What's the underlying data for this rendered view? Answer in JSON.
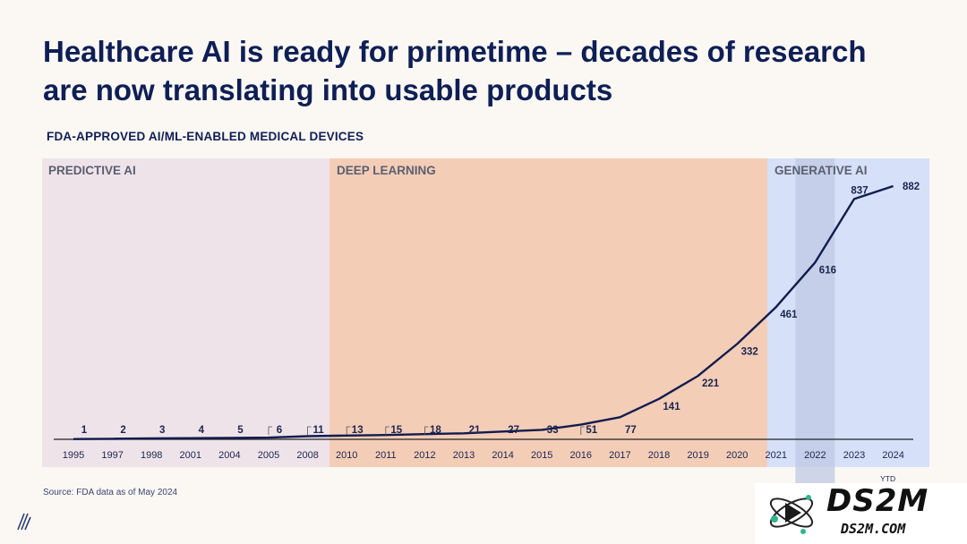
{
  "slide": {
    "title": "Healthcare AI is ready for primetime – decades of research are now translating into usable products",
    "source_note": "Source: FDA data as of May 2024"
  },
  "watermark": {
    "big_text": "DS2M",
    "small_text": "DS2M.COM"
  },
  "chart_data": {
    "type": "line",
    "title": "FDA-APPROVED AI/ML-ENABLED MEDICAL DEVICES",
    "xlabel": "",
    "ylabel": "",
    "x": [
      "1995",
      "1997",
      "1998",
      "2001",
      "2004",
      "2005",
      "2008",
      "2010",
      "2011",
      "2012",
      "2013",
      "2014",
      "2015",
      "2016",
      "2017",
      "2018",
      "2019",
      "2020",
      "2021",
      "2022",
      "2023",
      "2024"
    ],
    "series": [
      {
        "values": [
          1,
          2,
          3,
          4,
          5,
          6,
          11,
          13,
          15,
          18,
          21,
          27,
          33,
          51,
          77,
          141,
          221,
          332,
          461,
          616,
          837,
          882
        ]
      }
    ],
    "ylim": [
      0,
      900
    ],
    "x_annotations": [
      {
        "x": "2024",
        "text": "YTD"
      }
    ],
    "eras": [
      {
        "label": "PREDICTIVE AI",
        "from": "1995",
        "to": "2008",
        "color": "#efe3ea"
      },
      {
        "label": "DEEP LEARNING",
        "from": "2010",
        "to": "2020",
        "color": "#f4cdb7"
      },
      {
        "label": "GENERATIVE AI",
        "from": "2021",
        "to": "2024",
        "color": "#d6e0f8"
      }
    ],
    "highlight_year": "2022",
    "line_color": "#111c4e",
    "grid": false
  }
}
